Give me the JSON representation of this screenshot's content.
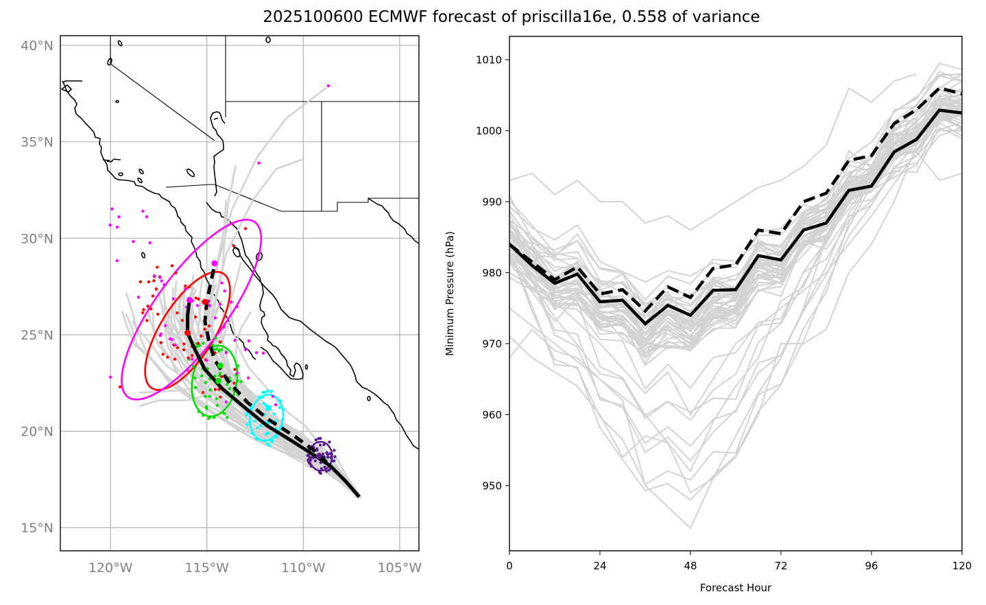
{
  "title": "2025100600 ECMWF forecast of priscilla16e, 0.558 of variance",
  "colors": {
    "ensemble": "#d3d3d3",
    "mean": "#000000",
    "grid": "#b0b0b0",
    "coast": "#000000",
    "ellipse_24h": "#5a1f8f",
    "ellipse_48h": "#00ffff",
    "ellipse_72h": "#00dd00",
    "ellipse_96h": "#ff0000",
    "ellipse_120h": "#ff00ff"
  },
  "chart_data": [
    {
      "type": "map",
      "name": "track-map",
      "lat_ticks": [
        {
          "value": 40,
          "label": "40°N"
        },
        {
          "value": 35,
          "label": "35°N"
        },
        {
          "value": 30,
          "label": "30°N"
        },
        {
          "value": 25,
          "label": "25°N"
        },
        {
          "value": 20,
          "label": "20°N"
        },
        {
          "value": 15,
          "label": "15°N"
        }
      ],
      "lon_ticks": [
        {
          "value": -120,
          "label": "120°W"
        },
        {
          "value": -115,
          "label": "115°W"
        },
        {
          "value": -110,
          "label": "110°W"
        },
        {
          "value": -105,
          "label": "105°W"
        }
      ],
      "xlim": [
        -122.6,
        -104.0
      ],
      "ylim": [
        13.8,
        40.5
      ],
      "grid": true,
      "mean_track_solid": {
        "lon": [
          -107.1,
          -107.8,
          -108.6,
          -109.5,
          -110.6,
          -111.9,
          -113.0,
          -114.2,
          -115.1,
          -115.6,
          -116.0,
          -116.0,
          -115.9
        ],
        "lat": [
          16.6,
          17.4,
          18.2,
          18.8,
          19.5,
          20.3,
          21.2,
          22.2,
          23.2,
          24.2,
          25.1,
          26.0,
          26.8
        ]
      },
      "mean_track_dashed": {
        "lon": [
          -107.1,
          -107.8,
          -108.6,
          -109.3,
          -110.4,
          -111.8,
          -112.9,
          -113.9,
          -114.6,
          -114.9,
          -115.1,
          -115.0,
          -114.8,
          -114.6
        ],
        "lat": [
          16.6,
          17.4,
          18.2,
          18.9,
          19.7,
          20.6,
          21.5,
          22.6,
          23.7,
          24.7,
          25.7,
          26.7,
          27.7,
          28.6
        ]
      },
      "ellipses": [
        {
          "hour": 24,
          "color_key": "ellipse_24h",
          "lon": -109.1,
          "lat": 18.7,
          "a_deg": 0.6,
          "b_deg": 0.75,
          "angle": 0
        },
        {
          "hour": 48,
          "color_key": "ellipse_48h",
          "lon": -111.9,
          "lat": 20.7,
          "a_deg": 0.85,
          "b_deg": 1.2,
          "angle": 10
        },
        {
          "hour": 72,
          "color_key": "ellipse_72h",
          "lon": -114.6,
          "lat": 22.6,
          "a_deg": 1.15,
          "b_deg": 1.85,
          "angle": 10
        },
        {
          "hour": 96,
          "color_key": "ellipse_96h",
          "lon": -116.0,
          "lat": 25.2,
          "a_deg": 1.4,
          "b_deg": 3.5,
          "angle": 32
        },
        {
          "hour": 120,
          "color_key": "ellipse_120h",
          "lon": -115.8,
          "lat": 26.3,
          "a_deg": 1.85,
          "b_deg": 5.6,
          "angle": 36
        }
      ]
    },
    {
      "type": "line",
      "name": "pressure-chart",
      "xlabel": "Forecast Hour",
      "ylabel": "Minimum Pressure (hPa)",
      "xlim": [
        0,
        120
      ],
      "ylim": [
        940.8,
        1013.3
      ],
      "x_ticks": [
        0,
        24,
        48,
        72,
        96,
        120
      ],
      "y_ticks": [
        950,
        960,
        970,
        980,
        990,
        1000,
        1010
      ],
      "x": [
        0,
        6,
        12,
        18,
        24,
        30,
        36,
        42,
        48,
        54,
        60,
        66,
        72,
        78,
        84,
        90,
        96,
        102,
        108,
        114,
        120
      ],
      "series": [
        {
          "name": "solid-mean",
          "style": "solid",
          "values": [
            984.0,
            981.0,
            978.5,
            979.8,
            975.9,
            976.1,
            972.8,
            975.4,
            974.0,
            977.5,
            977.6,
            982.4,
            981.8,
            986.0,
            987.0,
            991.6,
            992.2,
            997.0,
            998.8,
            1002.9,
            1002.5
          ]
        },
        {
          "name": "dashed-mean",
          "style": "dashed",
          "values": [
            984.0,
            981.5,
            979.0,
            980.8,
            977.0,
            977.6,
            974.6,
            978.0,
            976.5,
            980.6,
            981.1,
            986.0,
            985.5,
            990.0,
            991.2,
            995.8,
            996.5,
            1001.0,
            1003.0,
            1006.0,
            1005.2
          ]
        }
      ]
    }
  ]
}
